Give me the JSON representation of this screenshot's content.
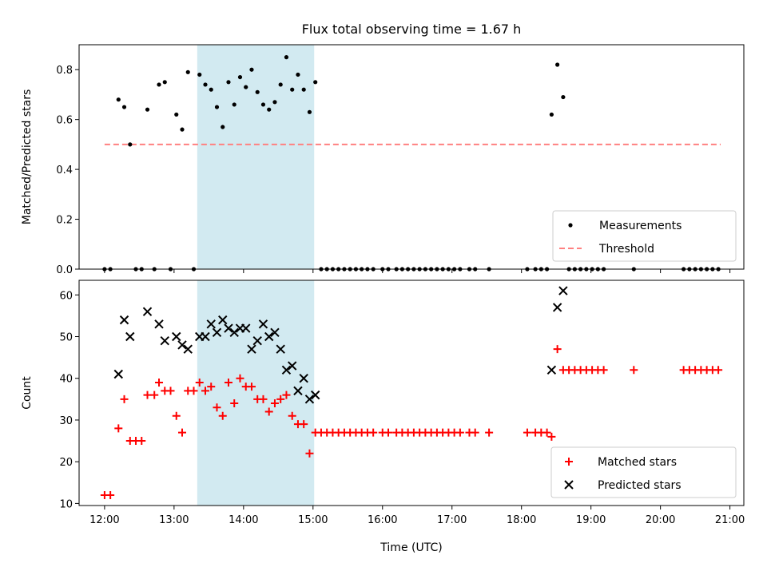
{
  "title": "Flux total observing time = 1.67 h",
  "colors": {
    "measurement": "#000000",
    "threshold": "#ff8080",
    "matched": "#ff0000",
    "predicted": "#000000",
    "span": "#add8e6"
  },
  "chart_data": [
    {
      "type": "scatter",
      "ylabel": "Matched/Predicted stars",
      "ylim": [
        0,
        0.9
      ],
      "yticks": [
        "0.0",
        "0.2",
        "0.4",
        "0.6",
        "0.8"
      ],
      "xlim": [
        "11:38",
        "21:12"
      ],
      "highlight_span": [
        "13:20",
        "15:01"
      ],
      "legend_position": "lower right",
      "legend": [
        "Measurements",
        "Threshold"
      ],
      "threshold": {
        "name": "Threshold",
        "value": 0.5,
        "x_range": [
          "12:00",
          "20:52"
        ]
      },
      "series": [
        {
          "name": "Measurements",
          "points": [
            [
              "12:00",
              0.0
            ],
            [
              "12:05",
              0.0
            ],
            [
              "12:12",
              0.68
            ],
            [
              "12:17",
              0.65
            ],
            [
              "12:22",
              0.5
            ],
            [
              "12:27",
              0.0
            ],
            [
              "12:32",
              0.0
            ],
            [
              "12:37",
              0.64
            ],
            [
              "12:43",
              0.0
            ],
            [
              "12:47",
              0.74
            ],
            [
              "12:52",
              0.75
            ],
            [
              "12:57",
              0.0
            ],
            [
              "13:02",
              0.62
            ],
            [
              "13:07",
              0.56
            ],
            [
              "13:12",
              0.79
            ],
            [
              "13:17",
              0.0
            ],
            [
              "13:22",
              0.78
            ],
            [
              "13:27",
              0.74
            ],
            [
              "13:32",
              0.72
            ],
            [
              "13:37",
              0.65
            ],
            [
              "13:42",
              0.57
            ],
            [
              "13:47",
              0.75
            ],
            [
              "13:52",
              0.66
            ],
            [
              "13:57",
              0.77
            ],
            [
              "14:02",
              0.73
            ],
            [
              "14:07",
              0.8
            ],
            [
              "14:12",
              0.71
            ],
            [
              "14:17",
              0.66
            ],
            [
              "14:22",
              0.64
            ],
            [
              "14:27",
              0.67
            ],
            [
              "14:32",
              0.74
            ],
            [
              "14:37",
              0.85
            ],
            [
              "14:42",
              0.72
            ],
            [
              "14:47",
              0.78
            ],
            [
              "14:52",
              0.72
            ],
            [
              "14:57",
              0.63
            ],
            [
              "15:02",
              0.75
            ],
            [
              "15:07",
              0.0
            ],
            [
              "15:12",
              0.0
            ],
            [
              "15:17",
              0.0
            ],
            [
              "15:22",
              0.0
            ],
            [
              "15:27",
              0.0
            ],
            [
              "15:32",
              0.0
            ],
            [
              "15:37",
              0.0
            ],
            [
              "15:42",
              0.0
            ],
            [
              "15:47",
              0.0
            ],
            [
              "15:52",
              0.0
            ],
            [
              "16:00",
              0.0
            ],
            [
              "16:05",
              0.0
            ],
            [
              "16:12",
              0.0
            ],
            [
              "16:17",
              0.0
            ],
            [
              "16:22",
              0.0
            ],
            [
              "16:27",
              0.0
            ],
            [
              "16:32",
              0.0
            ],
            [
              "16:37",
              0.0
            ],
            [
              "16:42",
              0.0
            ],
            [
              "16:47",
              0.0
            ],
            [
              "16:52",
              0.0
            ],
            [
              "16:57",
              0.0
            ],
            [
              "17:02",
              0.0
            ],
            [
              "17:07",
              0.0
            ],
            [
              "17:15",
              0.0
            ],
            [
              "17:20",
              0.0
            ],
            [
              "17:32",
              0.0
            ],
            [
              "18:05",
              0.0
            ],
            [
              "18:12",
              0.0
            ],
            [
              "18:17",
              0.0
            ],
            [
              "18:22",
              0.0
            ],
            [
              "18:26",
              0.62
            ],
            [
              "18:31",
              0.82
            ],
            [
              "18:36",
              0.69
            ],
            [
              "18:41",
              0.0
            ],
            [
              "18:46",
              0.0
            ],
            [
              "18:51",
              0.0
            ],
            [
              "18:56",
              0.0
            ],
            [
              "19:01",
              0.0
            ],
            [
              "19:06",
              0.0
            ],
            [
              "19:11",
              0.0
            ],
            [
              "19:37",
              0.0
            ],
            [
              "20:20",
              0.0
            ],
            [
              "20:25",
              0.0
            ],
            [
              "20:30",
              0.0
            ],
            [
              "20:35",
              0.0
            ],
            [
              "20:40",
              0.0
            ],
            [
              "20:45",
              0.0
            ],
            [
              "20:50",
              0.0
            ]
          ]
        }
      ]
    },
    {
      "type": "scatter",
      "xlabel": "Time (UTC)",
      "ylabel": "Count",
      "ylim": [
        9.5,
        63.5
      ],
      "yticks": [
        "10",
        "20",
        "30",
        "40",
        "50",
        "60"
      ],
      "xlim": [
        "11:38",
        "21:12"
      ],
      "xticks": [
        "12:00",
        "13:00",
        "14:00",
        "15:00",
        "16:00",
        "17:00",
        "18:00",
        "19:00",
        "20:00",
        "21:00"
      ],
      "highlight_span": [
        "13:20",
        "15:01"
      ],
      "legend_position": "lower right",
      "legend": [
        "Matched stars",
        "Predicted stars"
      ],
      "series": [
        {
          "name": "Matched stars",
          "marker": "plus",
          "points": [
            [
              "12:00",
              12
            ],
            [
              "12:05",
              12
            ],
            [
              "12:12",
              28
            ],
            [
              "12:17",
              35
            ],
            [
              "12:22",
              25
            ],
            [
              "12:27",
              25
            ],
            [
              "12:32",
              25
            ],
            [
              "12:37",
              36
            ],
            [
              "12:43",
              36
            ],
            [
              "12:47",
              39
            ],
            [
              "12:52",
              37
            ],
            [
              "12:57",
              37
            ],
            [
              "13:02",
              31
            ],
            [
              "13:07",
              27
            ],
            [
              "13:12",
              37
            ],
            [
              "13:17",
              37
            ],
            [
              "13:22",
              39
            ],
            [
              "13:27",
              37
            ],
            [
              "13:32",
              38
            ],
            [
              "13:37",
              33
            ],
            [
              "13:42",
              31
            ],
            [
              "13:47",
              39
            ],
            [
              "13:52",
              34
            ],
            [
              "13:57",
              40
            ],
            [
              "14:02",
              38
            ],
            [
              "14:07",
              38
            ],
            [
              "14:12",
              35
            ],
            [
              "14:17",
              35
            ],
            [
              "14:22",
              32
            ],
            [
              "14:27",
              34
            ],
            [
              "14:32",
              35
            ],
            [
              "14:37",
              36
            ],
            [
              "14:42",
              31
            ],
            [
              "14:47",
              29
            ],
            [
              "14:52",
              29
            ],
            [
              "14:57",
              22
            ],
            [
              "15:02",
              27
            ],
            [
              "15:07",
              27
            ],
            [
              "15:12",
              27
            ],
            [
              "15:17",
              27
            ],
            [
              "15:22",
              27
            ],
            [
              "15:27",
              27
            ],
            [
              "15:32",
              27
            ],
            [
              "15:37",
              27
            ],
            [
              "15:42",
              27
            ],
            [
              "15:47",
              27
            ],
            [
              "15:52",
              27
            ],
            [
              "16:00",
              27
            ],
            [
              "16:05",
              27
            ],
            [
              "16:12",
              27
            ],
            [
              "16:17",
              27
            ],
            [
              "16:22",
              27
            ],
            [
              "16:27",
              27
            ],
            [
              "16:32",
              27
            ],
            [
              "16:37",
              27
            ],
            [
              "16:42",
              27
            ],
            [
              "16:47",
              27
            ],
            [
              "16:52",
              27
            ],
            [
              "16:57",
              27
            ],
            [
              "17:02",
              27
            ],
            [
              "17:07",
              27
            ],
            [
              "17:15",
              27
            ],
            [
              "17:20",
              27
            ],
            [
              "17:32",
              27
            ],
            [
              "18:05",
              27
            ],
            [
              "18:12",
              27
            ],
            [
              "18:17",
              27
            ],
            [
              "18:22",
              27
            ],
            [
              "18:26",
              26
            ],
            [
              "18:31",
              47
            ],
            [
              "18:36",
              42
            ],
            [
              "18:41",
              42
            ],
            [
              "18:46",
              42
            ],
            [
              "18:51",
              42
            ],
            [
              "18:56",
              42
            ],
            [
              "19:01",
              42
            ],
            [
              "19:06",
              42
            ],
            [
              "19:11",
              42
            ],
            [
              "19:37",
              42
            ],
            [
              "20:20",
              42
            ],
            [
              "20:25",
              42
            ],
            [
              "20:30",
              42
            ],
            [
              "20:35",
              42
            ],
            [
              "20:40",
              42
            ],
            [
              "20:45",
              42
            ],
            [
              "20:50",
              42
            ]
          ]
        },
        {
          "name": "Predicted stars",
          "marker": "x",
          "points": [
            [
              "12:12",
              41
            ],
            [
              "12:17",
              54
            ],
            [
              "12:22",
              50
            ],
            [
              "12:37",
              56
            ],
            [
              "12:47",
              53
            ],
            [
              "12:52",
              49
            ],
            [
              "13:02",
              50
            ],
            [
              "13:07",
              48
            ],
            [
              "13:12",
              47
            ],
            [
              "13:22",
              50
            ],
            [
              "13:27",
              50
            ],
            [
              "13:32",
              53
            ],
            [
              "13:37",
              51
            ],
            [
              "13:42",
              54
            ],
            [
              "13:47",
              52
            ],
            [
              "13:52",
              51
            ],
            [
              "13:57",
              52
            ],
            [
              "14:02",
              52
            ],
            [
              "14:07",
              47
            ],
            [
              "14:12",
              49
            ],
            [
              "14:17",
              53
            ],
            [
              "14:22",
              50
            ],
            [
              "14:27",
              51
            ],
            [
              "14:32",
              47
            ],
            [
              "14:37",
              42
            ],
            [
              "14:42",
              43
            ],
            [
              "14:47",
              37
            ],
            [
              "14:52",
              40
            ],
            [
              "14:57",
              35
            ],
            [
              "15:02",
              36
            ],
            [
              "18:26",
              42
            ],
            [
              "18:31",
              57
            ],
            [
              "18:36",
              61
            ]
          ]
        }
      ]
    }
  ]
}
